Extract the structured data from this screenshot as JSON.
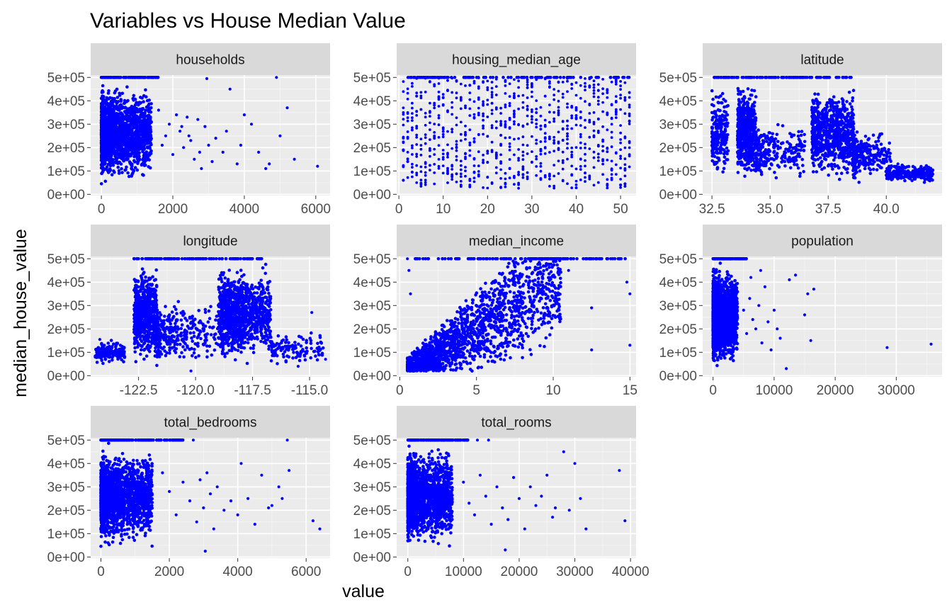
{
  "chart_data": {
    "type": "scatter",
    "title": "Variables vs House Median Value",
    "xlabel": "value",
    "ylabel": "median_house_value",
    "point_color": "#0000ff",
    "panel_background": "#ebebeb",
    "strip_background": "#d9d9d9",
    "grid": true,
    "y_tick_labels": [
      "0e+00",
      "1e+05",
      "2e+05",
      "3e+05",
      "4e+05",
      "5e+05"
    ],
    "y_ticks": [
      0,
      100000,
      200000,
      300000,
      400000,
      500000
    ],
    "ylim": [
      -5000,
      510000
    ],
    "facets": [
      {
        "name": "households",
        "xlim": [
          -300,
          6400
        ],
        "x_ticks": [
          0,
          2000,
          4000,
          6000
        ],
        "x_tick_labels": [
          "0",
          "2000",
          "4000",
          "6000"
        ],
        "clusters": [
          {
            "x": [
              0,
              1400
            ],
            "y": [
              15000,
              500000
            ],
            "n": 650,
            "k": 1.7,
            "m": 3
          }
        ],
        "cap": [
          0,
          1600
        ],
        "outliers": [
          [
            1600,
            360000
          ],
          [
            1700,
            210000
          ],
          [
            1800,
            250000
          ],
          [
            1900,
            300000
          ],
          [
            2000,
            170000
          ],
          [
            2100,
            340000
          ],
          [
            2200,
            270000
          ],
          [
            2300,
            200000
          ],
          [
            2400,
            330000
          ],
          [
            2500,
            230000
          ],
          [
            2600,
            150000
          ],
          [
            2700,
            320000
          ],
          [
            2800,
            110000
          ],
          [
            2900,
            290000
          ],
          [
            3000,
            210000
          ],
          [
            3200,
            240000
          ],
          [
            3400,
            180000
          ],
          [
            3500,
            270000
          ],
          [
            3600,
            450000
          ],
          [
            3800,
            130000
          ],
          [
            3900,
            210000
          ],
          [
            4000,
            340000
          ],
          [
            4200,
            300000
          ],
          [
            4400,
            180000
          ],
          [
            4600,
            110000
          ],
          [
            4700,
            130000
          ],
          [
            4900,
            500000
          ],
          [
            5000,
            250000
          ],
          [
            5200,
            370000
          ],
          [
            5400,
            150000
          ],
          [
            6050,
            120000
          ],
          [
            2450,
            250000
          ],
          [
            2250,
            290000
          ],
          [
            2750,
            180000
          ],
          [
            3100,
            140000
          ],
          [
            2950,
            495000
          ]
        ]
      },
      {
        "name": "housing_median_age",
        "xlim": [
          -0.5,
          53.5
        ],
        "x_ticks": [
          0,
          10,
          20,
          30,
          40,
          50
        ],
        "x_tick_labels": [
          "0",
          "10",
          "20",
          "30",
          "40",
          "50"
        ],
        "columns": {
          "from": 1,
          "to": 52,
          "y": [
            25000,
            500000
          ],
          "per": 16
        },
        "cap": [
          2,
          52
        ],
        "outliers": [
          [
            1,
            190000
          ],
          [
            1,
            60000
          ],
          [
            2,
            140000
          ],
          [
            3,
            95000
          ],
          [
            4,
            420000
          ],
          [
            50,
            40000
          ],
          [
            51,
            45000
          ]
        ]
      },
      {
        "name": "latitude",
        "xlim": [
          32.1,
          42.4
        ],
        "x_ticks": [
          32.5,
          35.0,
          37.5,
          40.0
        ],
        "x_tick_labels": [
          "32.5",
          "35.0",
          "37.5",
          "40.0"
        ],
        "clusters": [
          {
            "x": [
              32.5,
              33.2
            ],
            "y": [
              20000,
              500000
            ],
            "n": 120,
            "k": 1.3,
            "m": 2
          },
          {
            "x": [
              33.6,
              34.4
            ],
            "y": [
              30000,
              500000
            ],
            "n": 320,
            "k": 1.0,
            "m": 2
          },
          {
            "x": [
              34.4,
              36.5
            ],
            "y": [
              20000,
              350000
            ],
            "n": 120,
            "k": 1.6,
            "m": 2
          },
          {
            "x": [
              36.8,
              38.6
            ],
            "y": [
              20000,
              500000
            ],
            "n": 380,
            "k": 1.1,
            "m": 2
          },
          {
            "x": [
              38.6,
              40.2
            ],
            "y": [
              30000,
              300000
            ],
            "n": 130,
            "k": 1.8,
            "m": 2
          },
          {
            "x": [
              40.0,
              42.0
            ],
            "y": [
              40000,
              140000
            ],
            "n": 130,
            "k": 1.0,
            "m": 2
          }
        ],
        "cap": [
          32.6,
          38.5
        ],
        "outliers": [
          [
            41.8,
            95000
          ],
          [
            41.5,
            70000
          ],
          [
            40.5,
            130000
          ]
        ]
      },
      {
        "name": "longitude",
        "xlim": [
          -124.6,
          -114.1
        ],
        "x_ticks": [
          -122.5,
          -120.0,
          -117.5,
          -115.0
        ],
        "x_tick_labels": [
          "-122.5",
          "-120.0",
          "-117.5",
          "-115.0"
        ],
        "clusters": [
          {
            "x": [
              -124.4,
              -123.1
            ],
            "y": [
              40000,
              160000
            ],
            "n": 90,
            "k": 1.0,
            "m": 2
          },
          {
            "x": [
              -122.7,
              -121.7
            ],
            "y": [
              20000,
              500000
            ],
            "n": 340,
            "k": 1.0,
            "m": 2
          },
          {
            "x": [
              -121.7,
              -119.0
            ],
            "y": [
              20000,
              350000
            ],
            "n": 160,
            "k": 1.7,
            "m": 2
          },
          {
            "x": [
              -119.0,
              -117.9
            ],
            "y": [
              30000,
              500000
            ],
            "n": 330,
            "k": 1.0,
            "m": 2
          },
          {
            "x": [
              -117.9,
              -116.7
            ],
            "y": [
              30000,
              500000
            ],
            "n": 200,
            "k": 1.2,
            "m": 2
          },
          {
            "x": [
              -116.7,
              -114.4
            ],
            "y": [
              30000,
              200000
            ],
            "n": 60,
            "k": 1.3,
            "m": 2
          }
        ],
        "cap": [
          -122.7,
          -117.1
        ],
        "outliers": [
          [
            -124.2,
            155000
          ],
          [
            -114.6,
            90000
          ],
          [
            -114.3,
            70000
          ],
          [
            -114.9,
            270000
          ],
          [
            -115.5,
            40000
          ],
          [
            -120.2,
            20000
          ]
        ]
      },
      {
        "name": "median_income",
        "xlim": [
          -0.2,
          15.4
        ],
        "x_ticks": [
          0,
          5,
          10,
          15
        ],
        "x_tick_labels": [
          "0",
          "5",
          "10",
          "15"
        ],
        "band": {
          "n": 950
        },
        "cap": [
          1,
          15
        ],
        "outliers": [
          [
            0.5,
            500000
          ],
          [
            0.7,
            350000
          ],
          [
            0.6,
            450000
          ],
          [
            12.5,
            290000
          ],
          [
            12.5,
            110000
          ],
          [
            15,
            130000
          ],
          [
            14.8,
            400000
          ],
          [
            15,
            350000
          ],
          [
            13.5,
            500000
          ],
          [
            11,
            450000
          ]
        ]
      },
      {
        "name": "population",
        "xlim": [
          -1700,
          37500
        ],
        "x_ticks": [
          0,
          10000,
          20000,
          30000
        ],
        "x_tick_labels": [
          "0",
          "10000",
          "20000",
          "30000"
        ],
        "clusters": [
          {
            "x": [
              0,
              4000
            ],
            "y": [
              15000,
              500000
            ],
            "n": 650,
            "k": 1.8,
            "m": 3
          }
        ],
        "cap": [
          0,
          5500
        ],
        "outliers": [
          [
            5000,
            280000
          ],
          [
            5500,
            180000
          ],
          [
            6000,
            330000
          ],
          [
            6500,
            240000
          ],
          [
            7000,
            200000
          ],
          [
            7500,
            300000
          ],
          [
            8000,
            140000
          ],
          [
            8500,
            380000
          ],
          [
            9000,
            230000
          ],
          [
            9500,
            110000
          ],
          [
            10000,
            280000
          ],
          [
            10500,
            200000
          ],
          [
            11000,
            160000
          ],
          [
            12000,
            30000
          ],
          [
            12500,
            410000
          ],
          [
            13500,
            430000
          ],
          [
            15000,
            260000
          ],
          [
            15500,
            350000
          ],
          [
            16000,
            150000
          ],
          [
            16500,
            370000
          ],
          [
            28500,
            120000
          ],
          [
            35700,
            135000
          ],
          [
            6200,
            420000
          ],
          [
            7800,
            450000
          ]
        ]
      },
      {
        "name": "total_bedrooms",
        "xlim": [
          -300,
          6700
        ],
        "x_ticks": [
          0,
          2000,
          4000,
          6000
        ],
        "x_tick_labels": [
          "0",
          "2000",
          "4000",
          "6000"
        ],
        "clusters": [
          {
            "x": [
              0,
              1500
            ],
            "y": [
              15000,
              500000
            ],
            "n": 650,
            "k": 1.7,
            "m": 3
          }
        ],
        "cap": [
          0,
          2400
        ],
        "outliers": [
          [
            1800,
            360000
          ],
          [
            2000,
            280000
          ],
          [
            2200,
            180000
          ],
          [
            2400,
            320000
          ],
          [
            2600,
            240000
          ],
          [
            2800,
            150000
          ],
          [
            3000,
            210000
          ],
          [
            3100,
            360000
          ],
          [
            3200,
            270000
          ],
          [
            3300,
            120000
          ],
          [
            3400,
            300000
          ],
          [
            3600,
            200000
          ],
          [
            3800,
            240000
          ],
          [
            4000,
            180000
          ],
          [
            4100,
            400000
          ],
          [
            4300,
            250000
          ],
          [
            4500,
            140000
          ],
          [
            4700,
            350000
          ],
          [
            4900,
            210000
          ],
          [
            5000,
            220000
          ],
          [
            5200,
            300000
          ],
          [
            5300,
            250000
          ],
          [
            5450,
            500000
          ],
          [
            5500,
            370000
          ],
          [
            6200,
            155000
          ],
          [
            6400,
            120000
          ],
          [
            2700,
            500000
          ],
          [
            3050,
            25000
          ],
          [
            2900,
            330000
          ]
        ]
      },
      {
        "name": "total_rooms",
        "xlim": [
          -2000,
          41000
        ],
        "x_ticks": [
          0,
          10000,
          20000,
          30000,
          40000
        ],
        "x_tick_labels": [
          "0",
          "10000",
          "20000",
          "30000",
          "40000"
        ],
        "clusters": [
          {
            "x": [
              0,
              8000
            ],
            "y": [
              15000,
              500000
            ],
            "n": 650,
            "k": 1.8,
            "m": 3
          }
        ],
        "cap": [
          0,
          11000
        ],
        "outliers": [
          [
            10000,
            320000
          ],
          [
            11000,
            230000
          ],
          [
            12000,
            180000
          ],
          [
            13000,
            350000
          ],
          [
            14000,
            260000
          ],
          [
            15000,
            140000
          ],
          [
            16000,
            300000
          ],
          [
            17000,
            210000
          ],
          [
            18000,
            160000
          ],
          [
            19000,
            340000
          ],
          [
            20000,
            250000
          ],
          [
            21000,
            120000
          ],
          [
            22000,
            300000
          ],
          [
            23000,
            220000
          ],
          [
            24000,
            260000
          ],
          [
            25000,
            350000
          ],
          [
            26000,
            170000
          ],
          [
            28000,
            450000
          ],
          [
            29000,
            200000
          ],
          [
            30000,
            400000
          ],
          [
            31000,
            250000
          ],
          [
            32000,
            120000
          ],
          [
            38000,
            370000
          ],
          [
            39000,
            155000
          ],
          [
            12500,
            500000
          ],
          [
            14500,
            500000
          ],
          [
            17500,
            30000
          ],
          [
            26500,
            210000
          ]
        ]
      }
    ]
  }
}
